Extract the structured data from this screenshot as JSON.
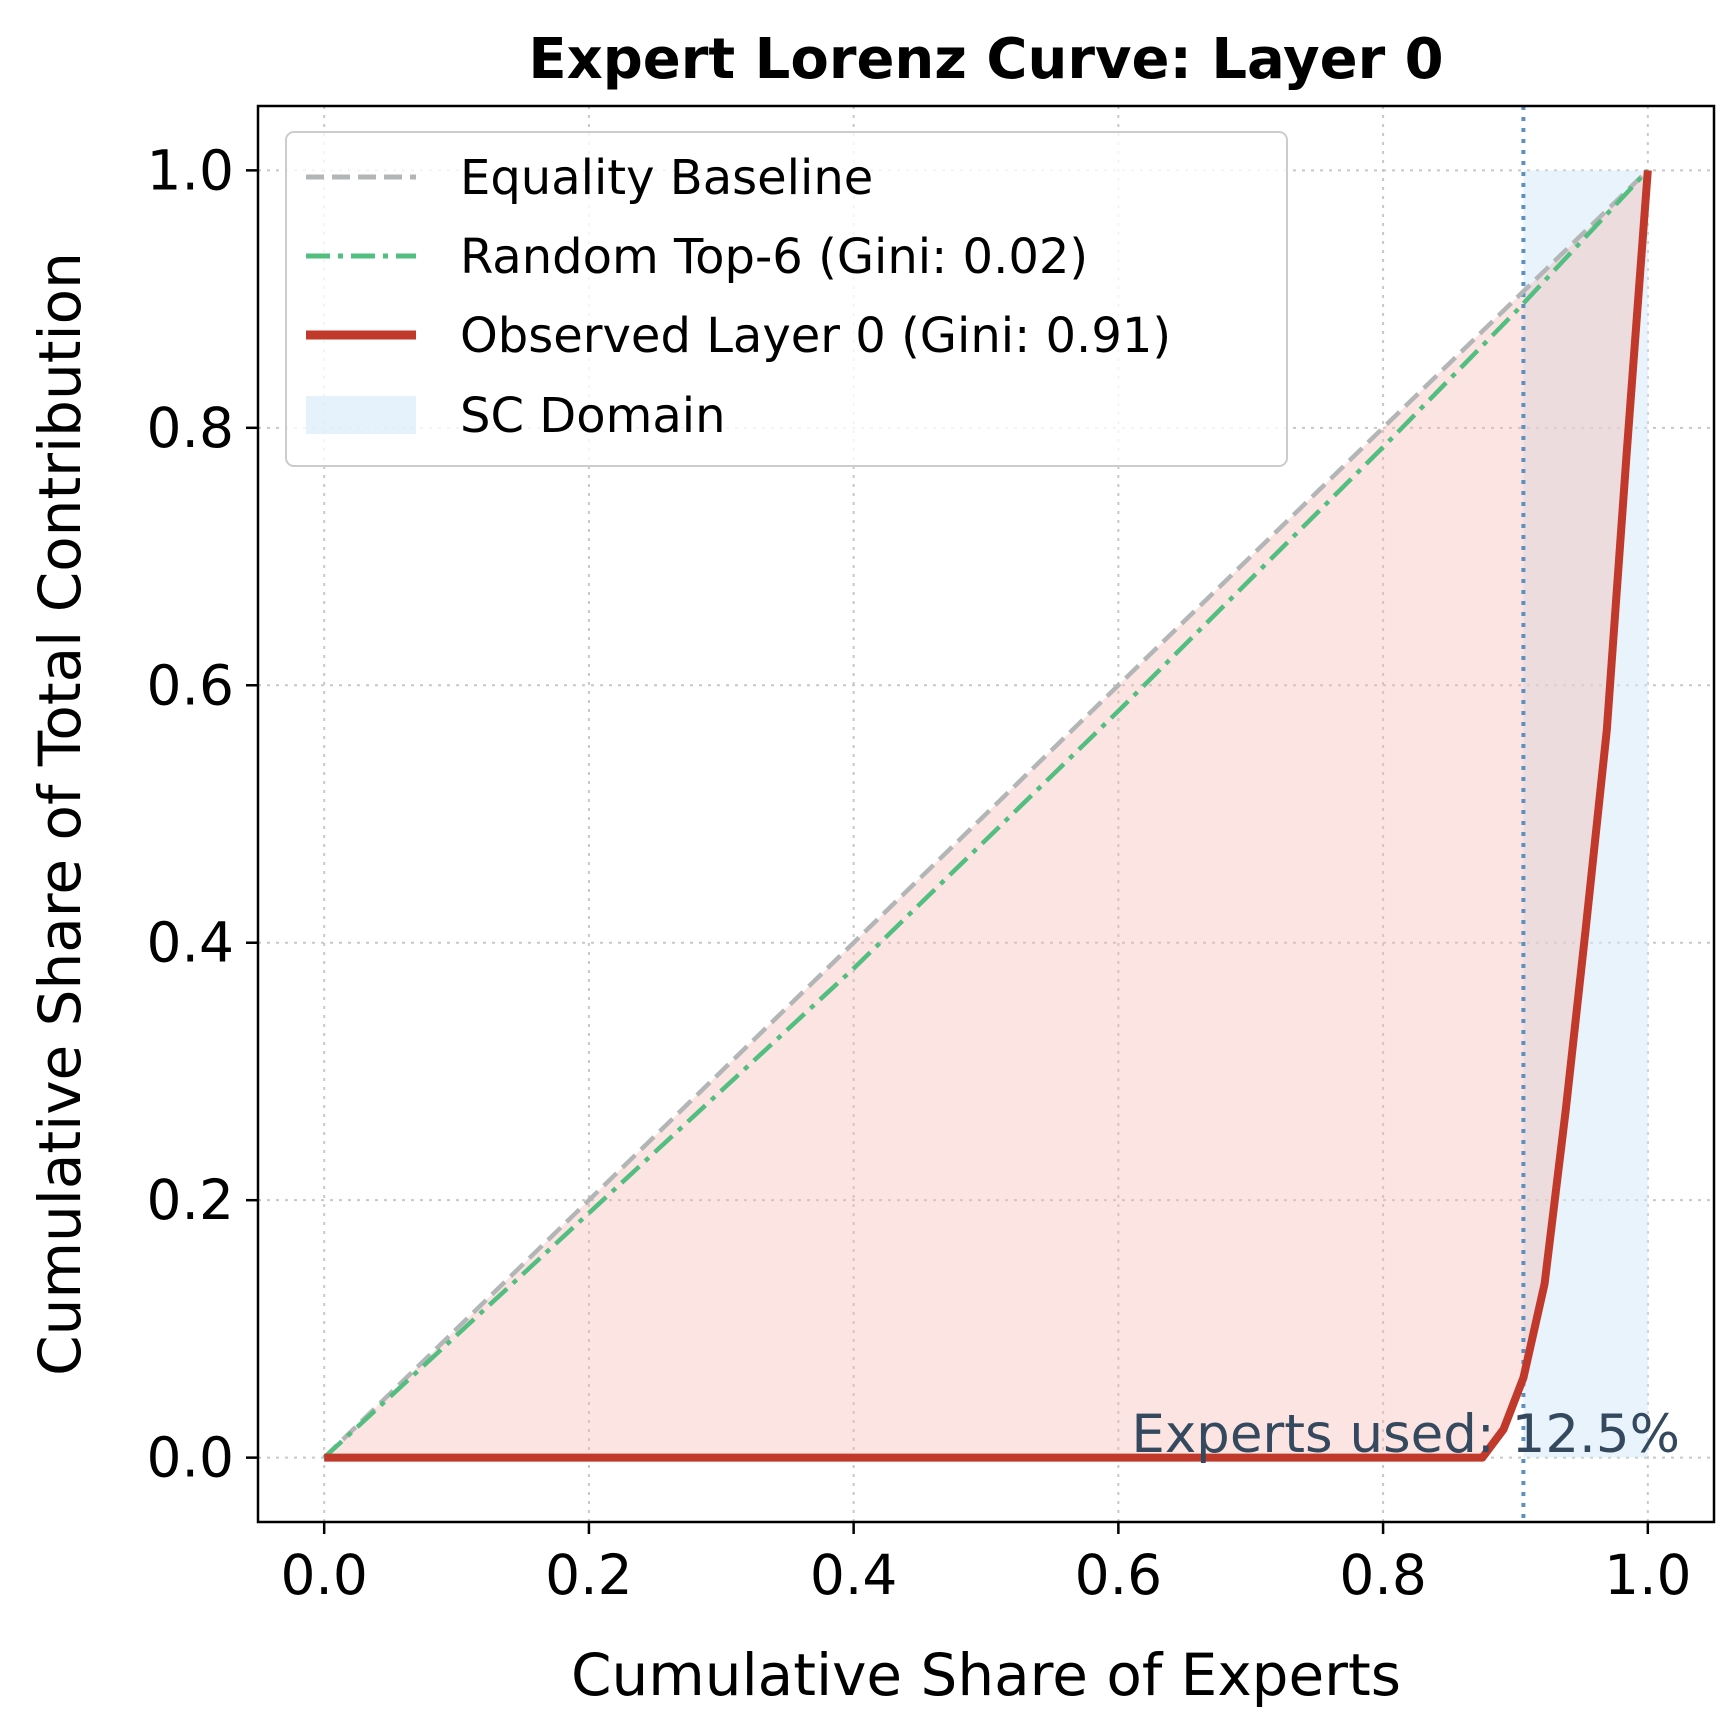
{
  "chart_data": {
    "type": "line",
    "title": "Expert Lorenz Curve: Layer 0",
    "xlabel": "Cumulative Share of Experts",
    "ylabel": "Cumulative Share of Total Contribution",
    "xlim": [
      -0.05,
      1.05
    ],
    "ylim": [
      -0.05,
      1.05
    ],
    "xticks": [
      0.0,
      0.2,
      0.4,
      0.6,
      0.8,
      1.0
    ],
    "yticks": [
      0.0,
      0.2,
      0.4,
      0.6,
      0.8,
      1.0
    ],
    "xtick_labels": [
      "0.0",
      "0.2",
      "0.4",
      "0.6",
      "0.8",
      "1.0"
    ],
    "ytick_labels": [
      "0.0",
      "0.2",
      "0.4",
      "0.6",
      "0.8",
      "1.0"
    ],
    "grid": true,
    "legend_position": "top-left",
    "series": [
      {
        "name": "Equality Baseline",
        "style": "dashed",
        "color": "#b3b6b7",
        "x": [
          0.0,
          1.0
        ],
        "y": [
          0.0,
          1.0
        ]
      },
      {
        "name": "Random Top-6 (Gini: 0.02)",
        "style": "dashdot",
        "color": "#52be80",
        "x": [
          0.0,
          0.2,
          0.4,
          0.6,
          0.8,
          0.9,
          1.0
        ],
        "y": [
          0.0,
          0.19,
          0.38,
          0.58,
          0.785,
          0.89,
          1.0
        ]
      },
      {
        "name": "Observed Layer 0 (Gini: 0.91)",
        "style": "solid",
        "color": "#c0392b",
        "x": [
          0.0,
          0.875,
          0.891,
          0.906,
          0.922,
          0.938,
          0.953,
          0.969,
          0.984,
          1.0
        ],
        "y": [
          0.0,
          0.0,
          0.022,
          0.062,
          0.135,
          0.27,
          0.41,
          0.565,
          0.78,
          1.0
        ]
      }
    ],
    "shaded_region": {
      "name": "SC Domain",
      "color": "#d6eaf8",
      "x_range": [
        0.906,
        1.0
      ],
      "y_range": [
        0.0,
        1.0
      ]
    },
    "vline": {
      "x": 0.906,
      "color": "#5d8fbf",
      "style": "dotted"
    },
    "area_fill_color": "#f5b7b1",
    "annotation": {
      "text": "Experts used: 12.5%",
      "x": 0.98,
      "y": 0.0,
      "color": "#34495e"
    }
  }
}
